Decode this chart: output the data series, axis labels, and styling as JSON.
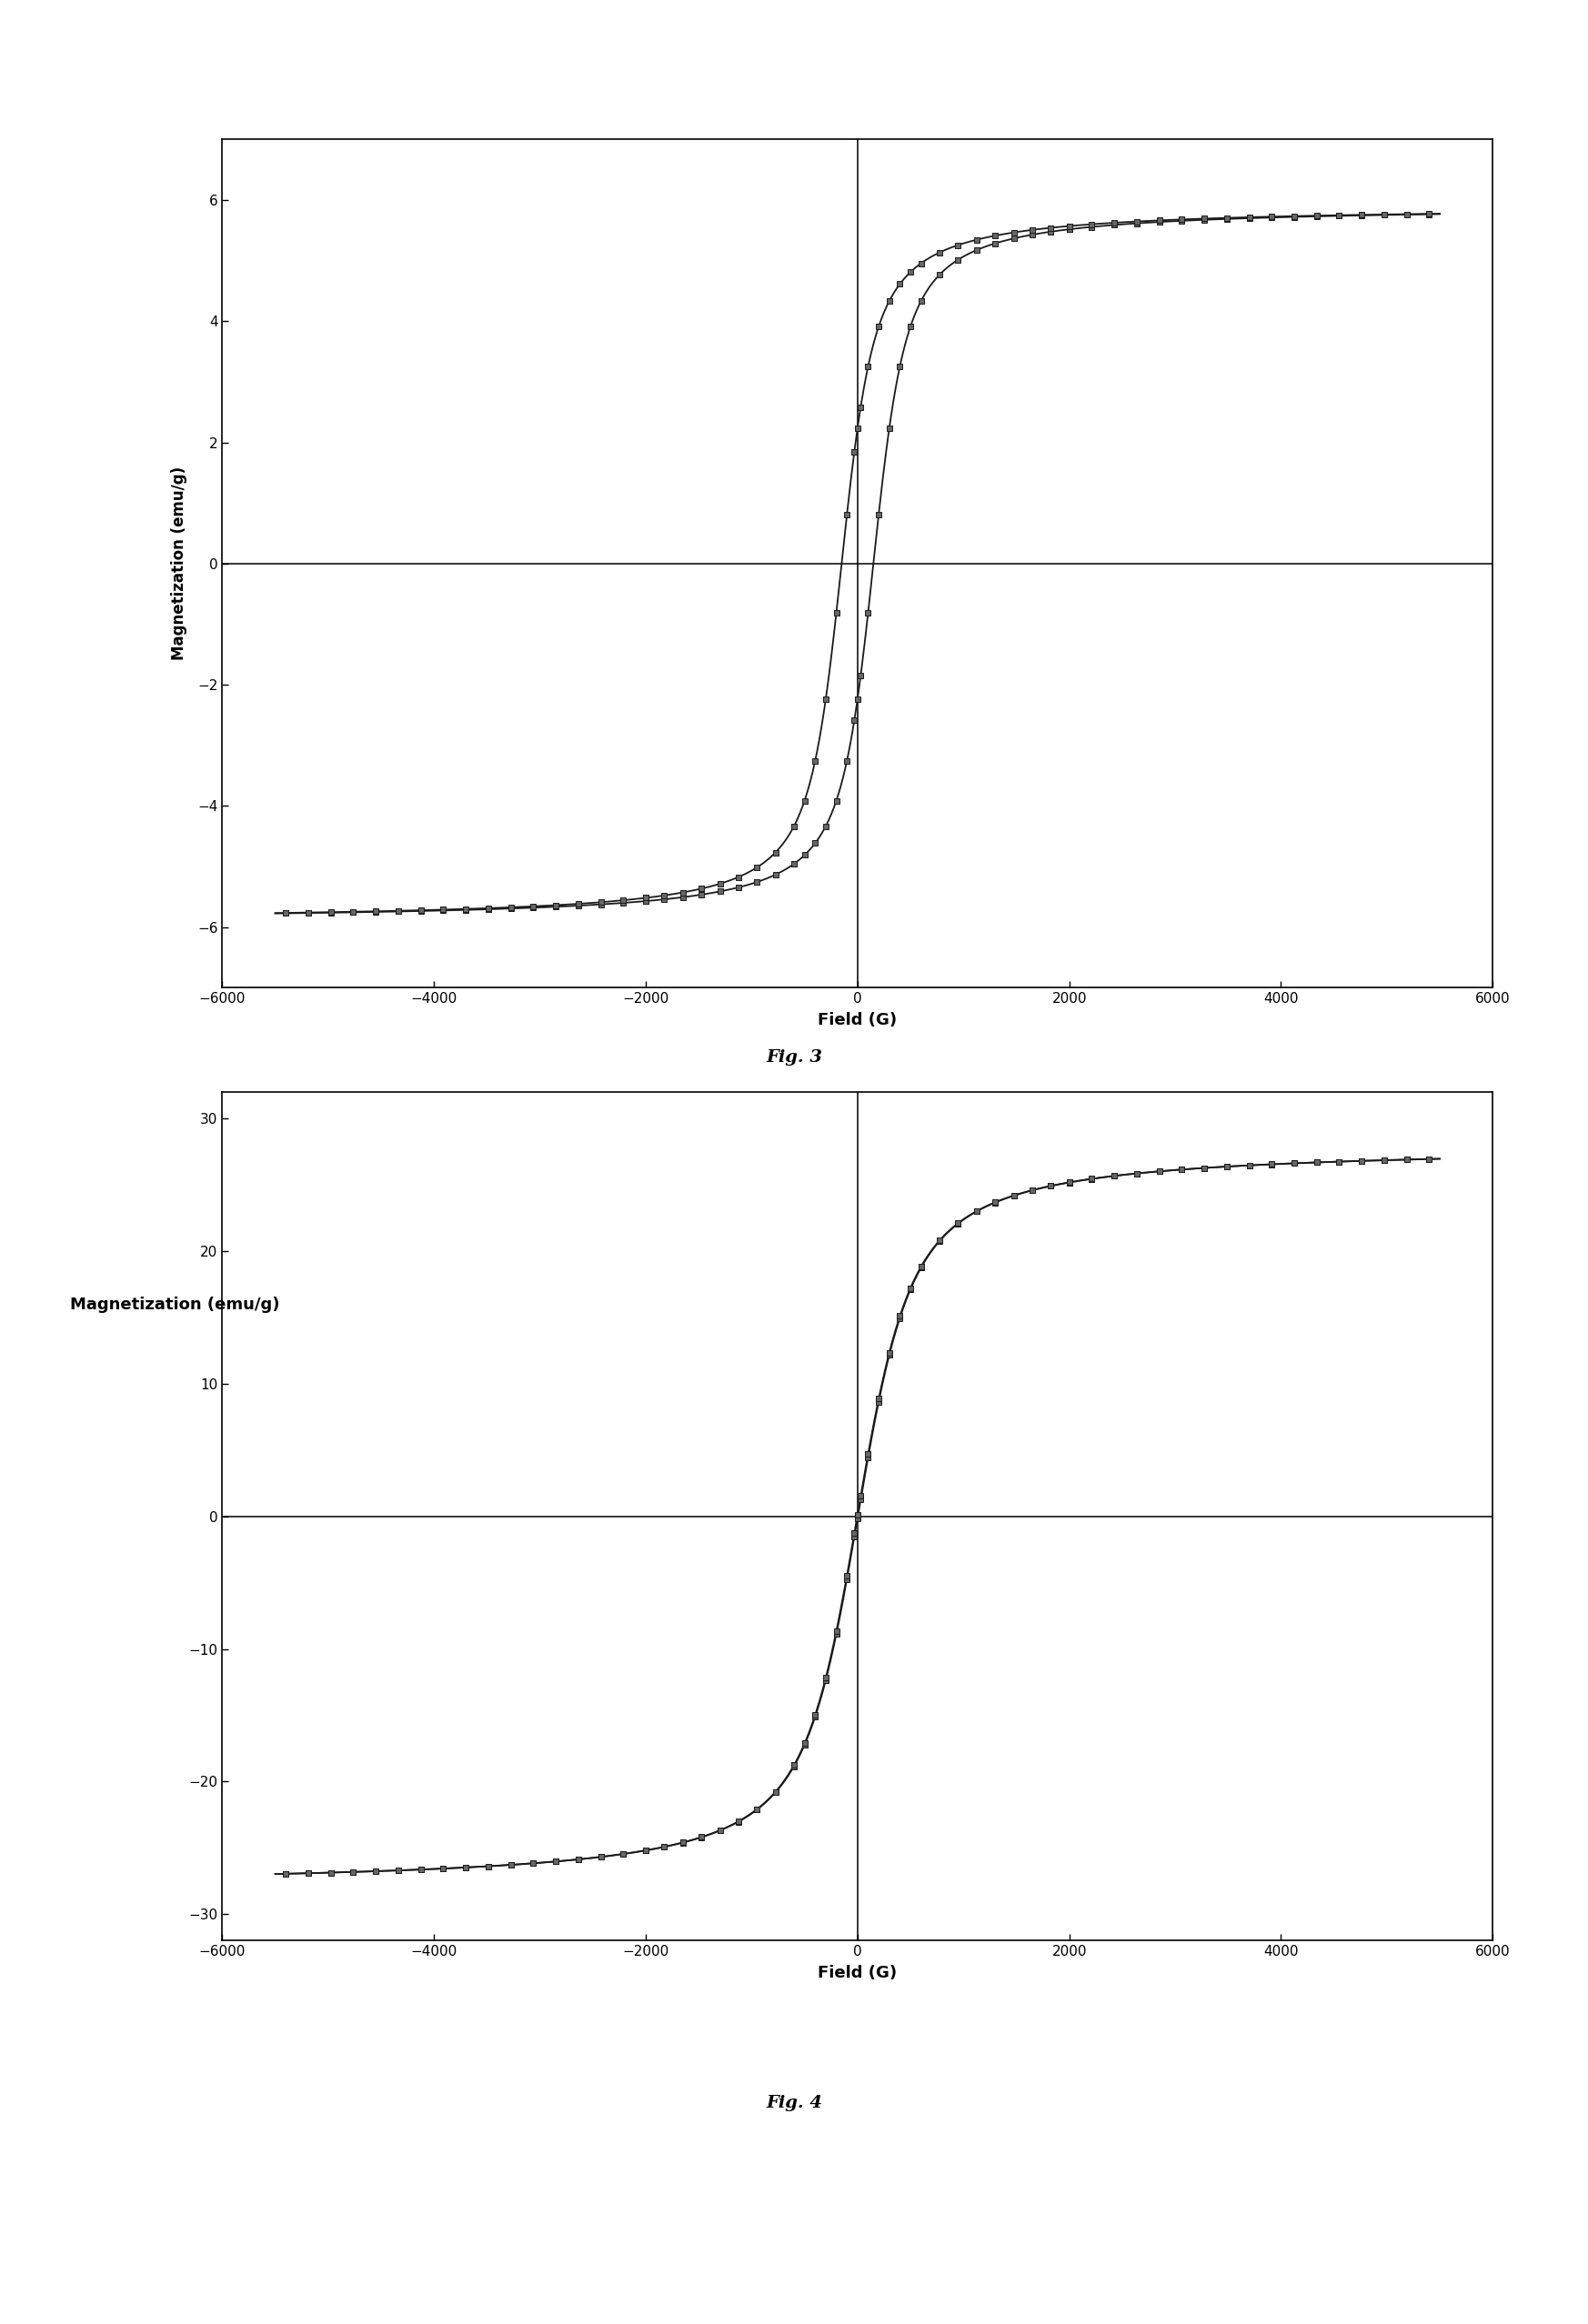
{
  "fig3": {
    "caption": "Fig. 3",
    "xlabel": "Field (G)",
    "ylabel": "Magnetization (emu/g)",
    "xlim": [
      -5600,
      5600
    ],
    "ylim": [
      -7.0,
      7.0
    ],
    "yticks": [
      -6,
      -4,
      -2,
      0,
      2,
      4,
      6
    ],
    "xticks": [
      -6000,
      -4000,
      -2000,
      0,
      2000,
      4000,
      6000
    ],
    "Ms": 5.9,
    "a": 120,
    "Hc": 150,
    "ylabel_rotation": 90
  },
  "fig4": {
    "caption": "Fig. 4",
    "xlabel": "Field (G)",
    "ylabel": "Magnetization (emu/g)",
    "xlim": [
      -5600,
      5600
    ],
    "ylim": [
      -32,
      32
    ],
    "yticks": [
      -30,
      -20,
      -10,
      0,
      10,
      20,
      30
    ],
    "xticks": [
      -6000,
      -4000,
      -2000,
      0,
      2000,
      4000,
      6000
    ],
    "Ms": 28.0,
    "a": 200,
    "Hc": 3,
    "ylabel_rotation": 0
  },
  "background_color": "#ffffff",
  "line_color": "#1a1a1a",
  "marker_facecolor": "#666666",
  "marker_edgecolor": "#1a1a1a",
  "marker_size": 5
}
